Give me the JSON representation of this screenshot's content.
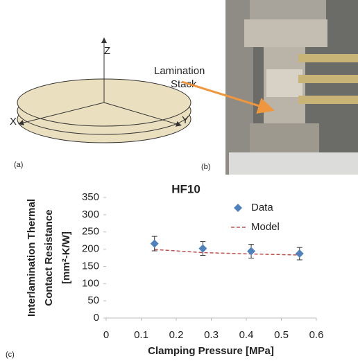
{
  "figure": {
    "panel_a": {
      "label": "(a)",
      "axes": [
        "Z",
        "X",
        "Y"
      ]
    },
    "panel_b": {
      "label": "(b)",
      "callout": [
        "Lamination",
        "Stack"
      ]
    },
    "panel_c_label": "(c)"
  },
  "chart_data": {
    "type": "scatter",
    "title": "HF10",
    "x_label": "Clamping Pressure [MPa]",
    "y_label": [
      "Interlamination Thermal",
      "Contact Resistance",
      "[mm²-K/W]"
    ],
    "x": [
      0.138,
      0.276,
      0.414,
      0.552
    ],
    "series": [
      {
        "name": "Data",
        "color": "#4f81bd",
        "values": [
          216,
          202,
          194,
          187
        ],
        "errors": [
          21,
          20,
          20,
          18
        ]
      },
      {
        "name": "Model",
        "color": "#c0504d",
        "values": [
          199,
          190,
          186,
          183
        ]
      }
    ],
    "xlim": [
      0,
      0.6
    ],
    "xticks": [
      0,
      0.1,
      0.2,
      0.3,
      0.4,
      0.5,
      0.6
    ],
    "ylim": [
      0,
      350
    ],
    "yticks": [
      0,
      50,
      100,
      150,
      200,
      250,
      300,
      350
    ],
    "grid": false
  }
}
